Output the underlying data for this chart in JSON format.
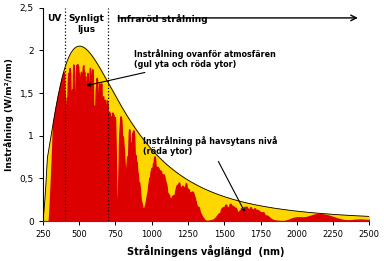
{
  "title": "",
  "xlabel": "Strålningens våglängd  (nm)",
  "ylabel": "Instrålning (W/m²/nm)",
  "xlim": [
    250,
    2500
  ],
  "ylim": [
    0,
    2.5
  ],
  "yticks": [
    0,
    0.5,
    1.0,
    1.5,
    2.0,
    2.5
  ],
  "ytick_labels": [
    "0",
    "0,5",
    "1",
    "1,5",
    "2",
    "2,5"
  ],
  "xticks": [
    250,
    500,
    750,
    1000,
    1250,
    1500,
    1750,
    2000,
    2250,
    2500
  ],
  "xtick_labels": [
    "250",
    "500",
    "750",
    "1000",
    "1250",
    "1500",
    "1750",
    "2000",
    "2250",
    "2500"
  ],
  "uv_boundary": 400,
  "visible_boundary": 700,
  "label_uv": "UV",
  "label_visible": "Synligt\nljus",
  "label_ir": "Infraröd strålning",
  "label_above_atm": "Instrålning ovanför atmosfären\n(gul yta och röda ytor)",
  "label_sea_level": "Instrålning på havsytans nivå\n(röda ytor)",
  "color_yellow": "#FFD700",
  "color_red": "#DD0000",
  "background_color": "#ffffff"
}
